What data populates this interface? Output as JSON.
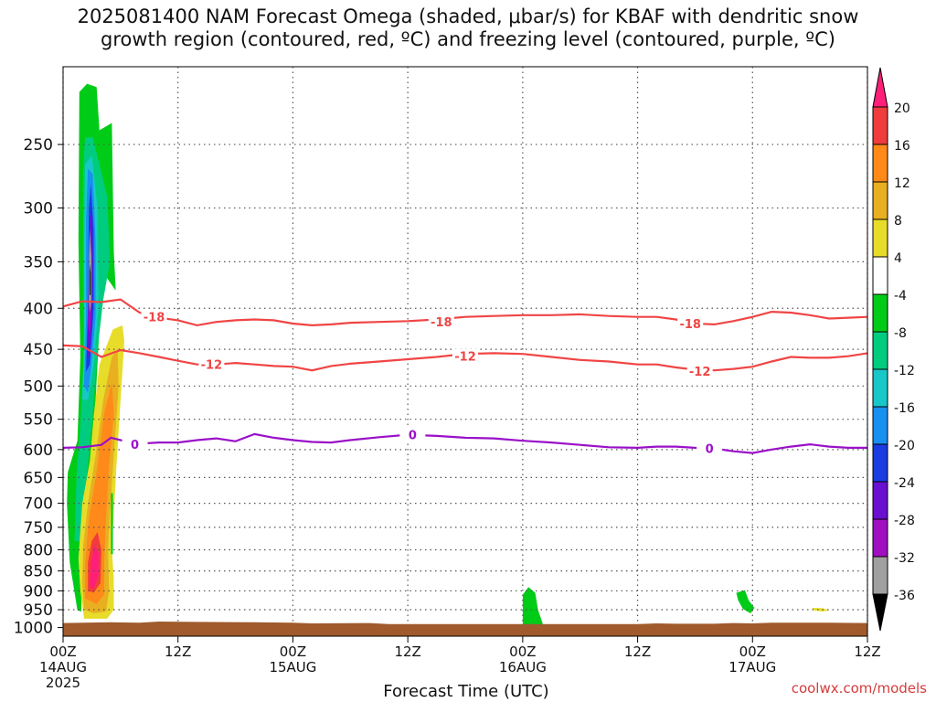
{
  "title": {
    "line1": "2025081400 NAM Forecast Omega (shaded, μbar/s) for KBAF with dendritic snow",
    "line2": "growth region (contoured, red, ºC) and freezing level (contoured, purple, ºC)"
  },
  "credit": "coolwx.com/models",
  "chart_data": {
    "type": "heatmap",
    "title": "2025081400 NAM Forecast Omega (shaded, μbar/s) for KBAF with dendritic snow growth region (contoured, red, ºC) and freezing level (contoured, purple, ºC)",
    "xlabel": "Forecast Time (UTC)",
    "ylabel": "",
    "xlim_hours": [
      0,
      84
    ],
    "ylim_hpa": [
      1025,
      200
    ],
    "y_scale": "log",
    "grid": true,
    "x_ticks": [
      {
        "hour": 0,
        "label": "00Z",
        "date": "14AUG",
        "year": "2025"
      },
      {
        "hour": 12,
        "label": "12Z",
        "date": "",
        "year": ""
      },
      {
        "hour": 24,
        "label": "00Z",
        "date": "15AUG",
        "year": ""
      },
      {
        "hour": 36,
        "label": "12Z",
        "date": "",
        "year": ""
      },
      {
        "hour": 48,
        "label": "00Z",
        "date": "16AUG",
        "year": ""
      },
      {
        "hour": 60,
        "label": "12Z",
        "date": "",
        "year": ""
      },
      {
        "hour": 72,
        "label": "00Z",
        "date": "17AUG",
        "year": ""
      },
      {
        "hour": 84,
        "label": "12Z",
        "date": "",
        "year": ""
      }
    ],
    "y_ticks": [
      250,
      300,
      350,
      400,
      450,
      500,
      550,
      600,
      650,
      700,
      750,
      800,
      850,
      900,
      950,
      1000
    ],
    "colorbar": {
      "levels": [
        "20",
        "16",
        "12",
        "8",
        "4",
        "-4",
        "-8",
        "-12",
        "-16",
        "-20",
        "-24",
        "-28",
        "-32",
        "-36"
      ],
      "colors": [
        "#ff1f7a",
        "#f03c3c",
        "#ff8a1a",
        "#e8b020",
        "#e8dc2a",
        "#ffffff",
        "#00cc18",
        "#00cc80",
        "#18c8c8",
        "#1890f0",
        "#1a3ce0",
        "#6a10d0",
        "#a010c0",
        "#a0a0a0",
        "#000000"
      ]
    },
    "contours": [
      {
        "label": "-18",
        "color": "#f04545",
        "x": [
          0,
          2,
          4,
          6,
          8,
          10,
          12,
          14,
          16,
          18,
          20,
          22,
          24,
          26,
          28,
          30,
          33,
          36,
          39,
          42,
          45,
          48,
          51,
          54,
          57,
          60,
          62,
          64,
          66,
          68,
          70,
          72,
          74,
          76,
          78,
          80,
          82,
          84
        ],
        "y": [
          398,
          392,
          393,
          390,
          405,
          411,
          414,
          420,
          416,
          414,
          413,
          414,
          418,
          420,
          419,
          417,
          416,
          415,
          413,
          410,
          409,
          408,
          408,
          407,
          409,
          410,
          410,
          413,
          418,
          419,
          415,
          410,
          404,
          405,
          408,
          412,
          411,
          410
        ],
        "label_pos": [
          {
            "x": 9.5,
            "y": 410
          },
          {
            "x": 39.5,
            "y": 416
          },
          {
            "x": 65.5,
            "y": 418
          }
        ]
      },
      {
        "label": "-12",
        "color": "#f04545",
        "x": [
          0,
          2,
          4,
          6,
          8,
          10,
          12,
          14,
          16,
          18,
          20,
          22,
          24,
          26,
          28,
          30,
          33,
          36,
          39,
          42,
          45,
          48,
          51,
          54,
          57,
          60,
          62,
          64,
          66,
          68,
          70,
          72,
          74,
          76,
          78,
          80,
          82,
          84
        ],
        "y": [
          445,
          446,
          460,
          451,
          455,
          460,
          465,
          470,
          470,
          468,
          470,
          472,
          473,
          478,
          472,
          469,
          466,
          463,
          460,
          456,
          455,
          456,
          460,
          464,
          466,
          470,
          470,
          474,
          477,
          478,
          476,
          473,
          466,
          460,
          461,
          461,
          459,
          455
        ],
        "label_pos": [
          {
            "x": 15.5,
            "y": 470
          },
          {
            "x": 42,
            "y": 459
          },
          {
            "x": 66.5,
            "y": 479
          }
        ]
      },
      {
        "label": "0",
        "color": "#9a10c8",
        "x": [
          0,
          2,
          4,
          5,
          6,
          8,
          10,
          12,
          14,
          16,
          18,
          20,
          22,
          24,
          26,
          28,
          30,
          33,
          36,
          39,
          42,
          45,
          48,
          51,
          54,
          57,
          60,
          62,
          64,
          66,
          68,
          70,
          72,
          74,
          76,
          78,
          80,
          82,
          84
        ],
        "y": [
          597,
          596,
          592,
          580,
          584,
          590,
          588,
          588,
          584,
          581,
          586,
          574,
          580,
          584,
          587,
          588,
          584,
          579,
          575,
          577,
          580,
          581,
          585,
          588,
          592,
          596,
          597,
          595,
          595,
          597,
          598,
          603,
          606,
          600,
          595,
          591,
          595,
          597,
          597
        ],
        "label_pos": [
          {
            "x": 7.5,
            "y": 591
          },
          {
            "x": 36.5,
            "y": 575
          },
          {
            "x": 67.5,
            "y": 598
          }
        ]
      }
    ],
    "shaded_regions": [
      {
        "value": "-8 to -4",
        "color": "#00cc18",
        "points": [
          [
            1.5,
            952
          ],
          [
            0.7,
            830
          ],
          [
            0.4,
            700
          ],
          [
            0.5,
            640
          ],
          [
            1.5,
            585
          ],
          [
            1.8,
            460
          ],
          [
            1.6,
            330
          ],
          [
            1.7,
            215
          ],
          [
            2.5,
            210
          ],
          [
            3.5,
            212
          ],
          [
            3.8,
            240
          ],
          [
            5.1,
            235
          ],
          [
            5.3,
            340
          ],
          [
            5.5,
            380
          ],
          [
            4.1,
            360
          ],
          [
            3.4,
            520
          ],
          [
            3.0,
            600
          ],
          [
            2.4,
            720
          ],
          [
            2.0,
            830
          ],
          [
            1.9,
            955
          ]
        ]
      },
      {
        "value": "-12 to -8",
        "color": "#00cc80",
        "points": [
          [
            1.2,
            780
          ],
          [
            1.4,
            650
          ],
          [
            1.8,
            560
          ],
          [
            2.2,
            460
          ],
          [
            2.1,
            360
          ],
          [
            2.1,
            270
          ],
          [
            2.3,
            245
          ],
          [
            3.1,
            245
          ],
          [
            3.8,
            265
          ],
          [
            4.6,
            290
          ],
          [
            4.9,
            350
          ],
          [
            4.2,
            390
          ],
          [
            3.6,
            450
          ],
          [
            3.1,
            540
          ],
          [
            2.5,
            640
          ],
          [
            1.8,
            780
          ]
        ]
      },
      {
        "value": "-16 to -12",
        "color": "#18c8c8",
        "points": [
          [
            2.0,
            520
          ],
          [
            2.2,
            430
          ],
          [
            2.2,
            330
          ],
          [
            2.3,
            265
          ],
          [
            3.0,
            258
          ],
          [
            3.6,
            300
          ],
          [
            3.7,
            400
          ],
          [
            3.2,
            470
          ],
          [
            2.6,
            520
          ]
        ]
      },
      {
        "value": "-20 to -16",
        "color": "#1890f0",
        "points": [
          [
            2.2,
            500
          ],
          [
            2.4,
            410
          ],
          [
            2.4,
            310
          ],
          [
            2.6,
            268
          ],
          [
            3.1,
            272
          ],
          [
            3.4,
            330
          ],
          [
            3.4,
            410
          ],
          [
            2.9,
            480
          ],
          [
            2.6,
            510
          ]
        ]
      },
      {
        "value": "-24 to -20",
        "color": "#1a3ce0",
        "points": [
          [
            2.4,
            480
          ],
          [
            2.6,
            400
          ],
          [
            2.7,
            300
          ],
          [
            2.9,
            280
          ],
          [
            3.2,
            320
          ],
          [
            3.2,
            400
          ],
          [
            2.8,
            470
          ]
        ]
      },
      {
        "value": "-28 to -24",
        "color": "#6a10d0",
        "points": [
          [
            2.5,
            460
          ],
          [
            2.7,
            380
          ],
          [
            2.8,
            310
          ],
          [
            3.0,
            300
          ],
          [
            3.1,
            350
          ],
          [
            3.0,
            420
          ],
          [
            2.7,
            460
          ]
        ]
      },
      {
        "value": "-32 to -28",
        "color": "#a010c0",
        "points": [
          [
            2.6,
            420
          ],
          [
            2.7,
            360
          ],
          [
            2.8,
            330
          ],
          [
            3.0,
            340
          ],
          [
            3.0,
            390
          ],
          [
            2.8,
            430
          ]
        ]
      },
      {
        "value": "-36 to -32",
        "color": "#a0a0a0",
        "points": [
          [
            2.7,
            390
          ],
          [
            2.7,
            345
          ],
          [
            2.8,
            318
          ],
          [
            2.95,
            345
          ],
          [
            2.95,
            390
          ],
          [
            2.8,
            405
          ]
        ]
      },
      {
        "value": "< -36",
        "color": "#000000",
        "points": [
          [
            2.78,
            385
          ],
          [
            2.78,
            360
          ],
          [
            2.82,
            352
          ],
          [
            2.88,
            362
          ],
          [
            2.88,
            385
          ]
        ]
      },
      {
        "value": "4 to 8",
        "color": "#e8dc2a",
        "points": [
          [
            2.2,
            975
          ],
          [
            1.8,
            900
          ],
          [
            1.6,
            820
          ],
          [
            2.0,
            700
          ],
          [
            2.8,
            620
          ],
          [
            3.2,
            545
          ],
          [
            3.8,
            470
          ],
          [
            5.2,
            425
          ],
          [
            6.2,
            420
          ],
          [
            6.4,
            440
          ],
          [
            6.0,
            520
          ],
          [
            5.6,
            620
          ],
          [
            5.3,
            720
          ],
          [
            5.1,
            800
          ],
          [
            5.3,
            870
          ],
          [
            5.3,
            950
          ],
          [
            4.6,
            975
          ]
        ]
      },
      {
        "value": "8 to 12",
        "color": "#e8b020",
        "points": [
          [
            2.2,
            950
          ],
          [
            2.0,
            880
          ],
          [
            2.1,
            790
          ],
          [
            2.6,
            700
          ],
          [
            3.4,
            610
          ],
          [
            4.2,
            520
          ],
          [
            5.1,
            460
          ],
          [
            5.7,
            450
          ],
          [
            5.8,
            500
          ],
          [
            5.3,
            610
          ],
          [
            4.9,
            720
          ],
          [
            4.7,
            800
          ],
          [
            4.8,
            900
          ],
          [
            4.5,
            955
          ],
          [
            3.2,
            960
          ]
        ]
      },
      {
        "value": "12 to 16",
        "color": "#ff8a1a",
        "points": [
          [
            2.3,
            920
          ],
          [
            2.3,
            830
          ],
          [
            2.7,
            730
          ],
          [
            3.5,
            640
          ],
          [
            4.3,
            540
          ],
          [
            5.1,
            495
          ],
          [
            5.3,
            540
          ],
          [
            4.8,
            630
          ],
          [
            4.5,
            730
          ],
          [
            4.3,
            830
          ],
          [
            4.3,
            910
          ],
          [
            3.5,
            935
          ]
        ]
      },
      {
        "value": "16 to 20",
        "color": "#f03c3c",
        "points": [
          [
            2.6,
            900
          ],
          [
            2.6,
            830
          ],
          [
            3.0,
            780
          ],
          [
            3.6,
            760
          ],
          [
            4.0,
            800
          ],
          [
            3.9,
            880
          ],
          [
            3.2,
            905
          ]
        ]
      },
      {
        "value": "> 20",
        "color": "#ff1f7a",
        "points": [
          [
            2.8,
            890
          ],
          [
            2.9,
            830
          ],
          [
            3.3,
            790
          ],
          [
            3.7,
            805
          ],
          [
            3.7,
            860
          ],
          [
            3.2,
            895
          ]
        ]
      },
      {
        "value": "-8 to -4",
        "color": "#00cc18",
        "points": [
          [
            5.0,
            810
          ],
          [
            5.0,
            680
          ],
          [
            5.2,
            680
          ],
          [
            5.2,
            810
          ]
        ]
      },
      {
        "value": "-8 to -4",
        "color": "#00cc18",
        "points": [
          [
            48.0,
            995
          ],
          [
            48.0,
            910
          ],
          [
            48.6,
            890
          ],
          [
            49.3,
            905
          ],
          [
            49.6,
            950
          ],
          [
            50.1,
            990
          ],
          [
            49.0,
            998
          ]
        ]
      },
      {
        "value": "-8 to -4",
        "color": "#00cc18",
        "points": [
          [
            70.3,
            905
          ],
          [
            71.2,
            898
          ],
          [
            71.6,
            925
          ],
          [
            72.2,
            945
          ],
          [
            71.8,
            960
          ],
          [
            71.0,
            948
          ],
          [
            70.5,
            925
          ]
        ]
      },
      {
        "value": "4 to 8",
        "color": "#e8dc2a",
        "points": [
          [
            78.2,
            945
          ],
          [
            79.3,
            946
          ],
          [
            80.0,
            952
          ],
          [
            79.3,
            955
          ],
          [
            78.4,
            952
          ]
        ]
      }
    ],
    "terrain": {
      "color": "#a05a2c",
      "x": [
        0,
        5,
        8,
        10,
        14,
        20,
        24,
        26,
        32,
        34,
        40,
        50,
        60,
        62,
        64,
        68,
        70,
        72,
        74,
        80,
        84
      ],
      "p": [
        987,
        985,
        986,
        983,
        984,
        985,
        986,
        988,
        987,
        990,
        990,
        990,
        990,
        988,
        989,
        989,
        987,
        988,
        986,
        986,
        987
      ]
    }
  }
}
